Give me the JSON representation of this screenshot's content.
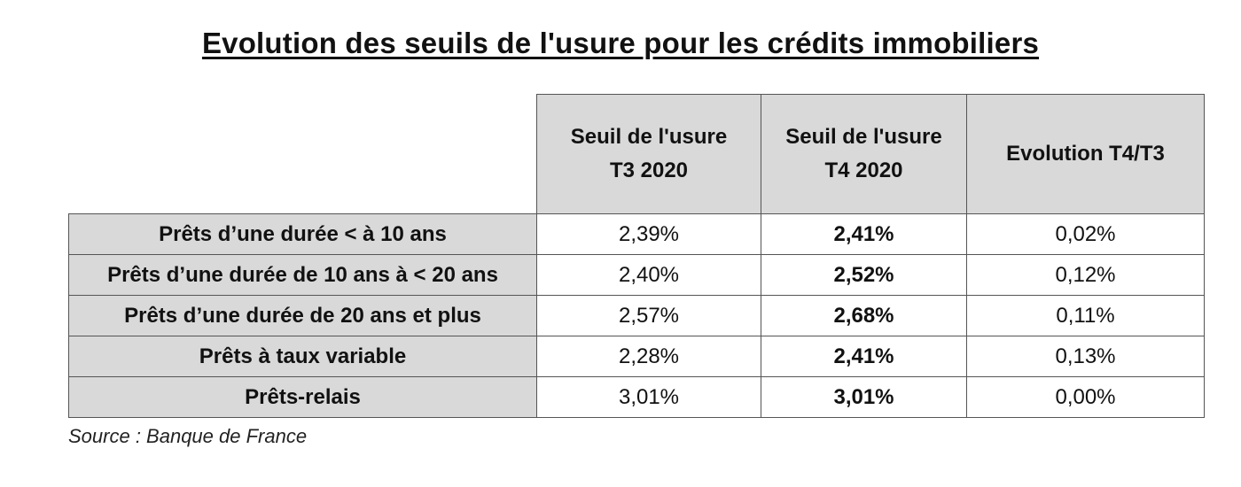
{
  "chart_data": {
    "type": "table",
    "title": "Evolution des seuils de l'usure pour les crédits immobiliers",
    "columns": [
      [
        "Seuil de l'usure",
        "T3 2020"
      ],
      [
        "Seuil de l'usure",
        "T4 2020"
      ],
      [
        "Evolution T4/T3"
      ]
    ],
    "rows": [
      {
        "label": "Prêts d’une durée < à 10 ans",
        "t3": "2,39%",
        "t4": "2,41%",
        "evolution": "0,02%"
      },
      {
        "label": "Prêts d’une durée de 10 ans à < 20 ans",
        "t3": "2,40%",
        "t4": "2,52%",
        "evolution": "0,12%"
      },
      {
        "label": "Prêts d’une durée de 20 ans et plus",
        "t3": "2,57%",
        "t4": "2,68%",
        "evolution": "0,11%"
      },
      {
        "label": "Prêts à taux variable",
        "t3": "2,28%",
        "t4": "2,41%",
        "evolution": "0,13%"
      },
      {
        "label": "Prêts-relais",
        "t3": "3,01%",
        "t4": "3,01%",
        "evolution": "0,00%"
      }
    ],
    "source": "Source : Banque de France"
  },
  "colors": {
    "header_bg": "#d9d9d9",
    "border": "#555555",
    "cell_bg": "#ffffff"
  }
}
